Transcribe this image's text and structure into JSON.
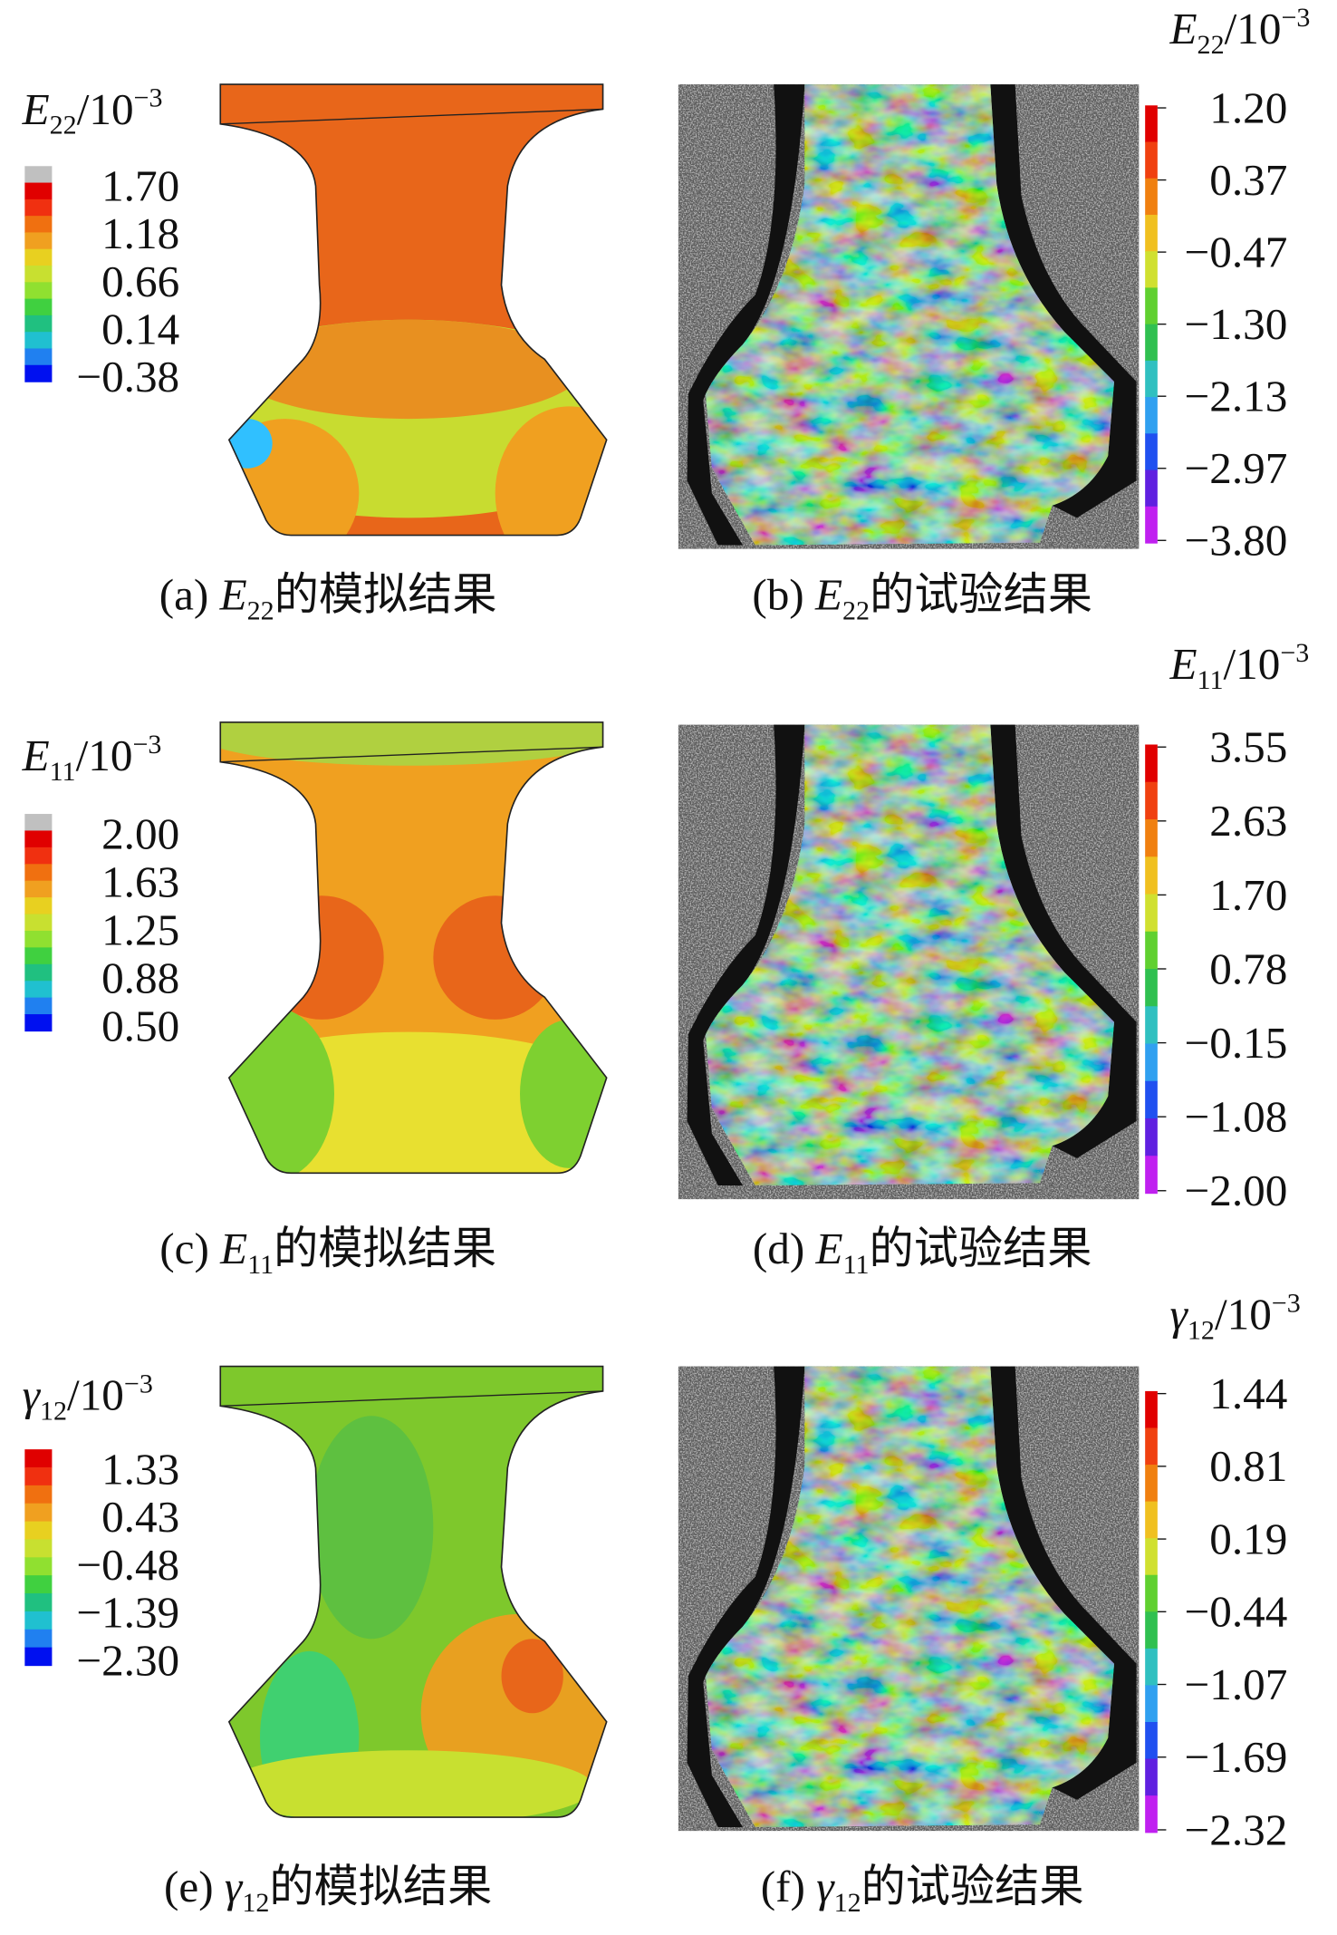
{
  "panels": [
    {
      "caption": {
        "label": "(a)",
        "symbol": "E",
        "subscript": "22",
        "text": "的模拟结果"
      },
      "legend": {
        "symbol": "E",
        "subscript": "22",
        "unit": "/10",
        "exponent": "−3",
        "values": [
          "1.70",
          "1.18",
          "0.66",
          "0.14",
          "−0.38"
        ]
      }
    },
    {
      "caption": {
        "label": "(b)",
        "symbol": "E",
        "subscript": "22",
        "text": "的试验结果"
      },
      "legend": {
        "symbol": "E",
        "subscript": "22",
        "unit": "/10",
        "exponent": "−3",
        "values": [
          "1.20",
          "0.37",
          "−0.47",
          "−1.30",
          "−2.13",
          "−2.97",
          "−3.80"
        ]
      }
    },
    {
      "caption": {
        "label": "(c)",
        "symbol": "E",
        "subscript": "11",
        "text": "的模拟结果"
      },
      "legend": {
        "symbol": "E",
        "subscript": "11",
        "unit": "/10",
        "exponent": "−3",
        "values": [
          "2.00",
          "1.63",
          "1.25",
          "0.88",
          "0.50"
        ]
      }
    },
    {
      "caption": {
        "label": "(d)",
        "symbol": "E",
        "subscript": "11",
        "text": "的试验结果"
      },
      "legend": {
        "symbol": "E",
        "subscript": "11",
        "unit": "/10",
        "exponent": "−3",
        "values": [
          "3.55",
          "2.63",
          "1.70",
          "0.78",
          "−0.15",
          "−1.08",
          "−2.00"
        ]
      }
    },
    {
      "caption": {
        "label": "(e)",
        "symbol": "γ",
        "subscript": "12",
        "text": "的模拟结果"
      },
      "legend": {
        "symbol": "γ",
        "subscript": "12",
        "unit": "/10",
        "exponent": "−3",
        "values": [
          "1.33",
          "0.43",
          "−0.48",
          "−1.39",
          "−2.30"
        ]
      }
    },
    {
      "caption": {
        "label": "(f)",
        "symbol": "γ",
        "subscript": "12",
        "text": "的试验结果"
      },
      "legend": {
        "symbol": "γ",
        "subscript": "12",
        "unit": "/10",
        "exponent": "−3",
        "values": [
          "1.44",
          "0.81",
          "0.19",
          "−0.44",
          "−1.07",
          "−1.69",
          "−2.32"
        ]
      }
    }
  ]
}
